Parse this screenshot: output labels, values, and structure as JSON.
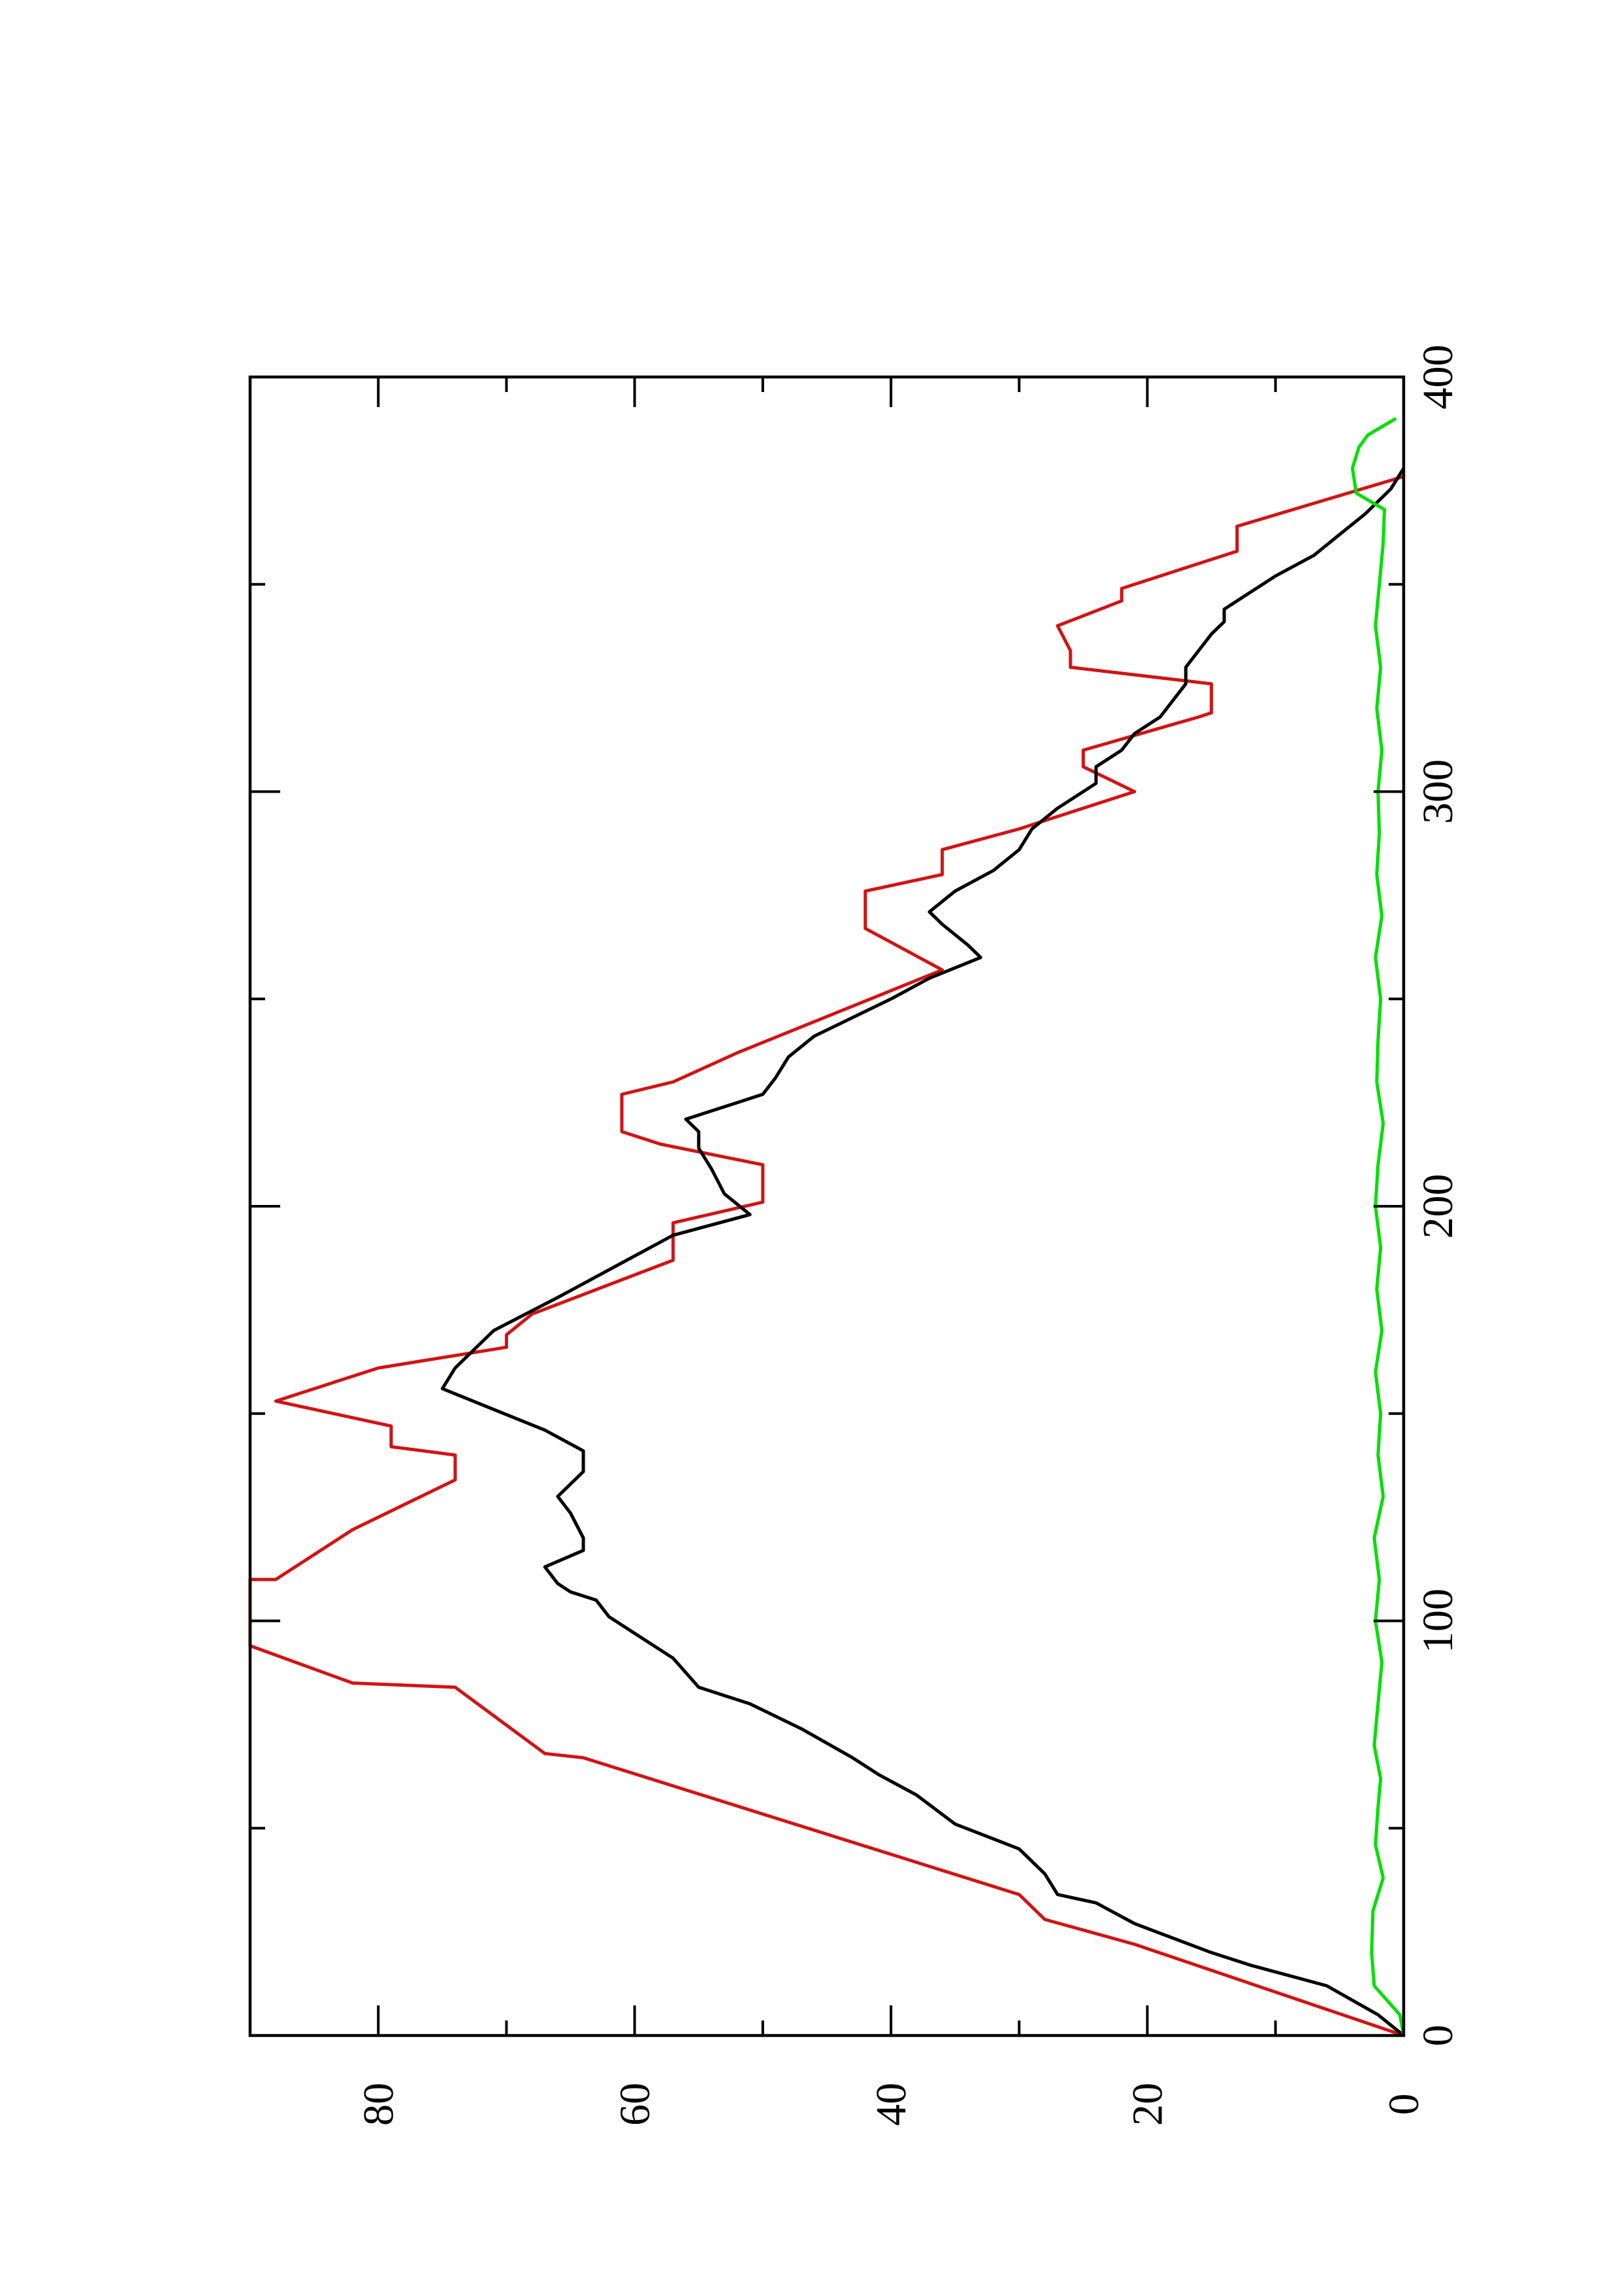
{
  "chart_data": {
    "type": "line",
    "orientation": "rotated-90-counterclockwise",
    "title": "",
    "xlabel": "",
    "ylabel": "",
    "xlim": [
      0,
      400
    ],
    "ylim": [
      0,
      90
    ],
    "x_ticks": [
      0,
      100,
      200,
      300,
      400
    ],
    "x_tick_labels": [
      "0",
      "100",
      "200",
      "300",
      "400"
    ],
    "x_minor_ticks": [
      50,
      150,
      250,
      350
    ],
    "y_ticks": [
      0,
      20,
      40,
      60,
      80
    ],
    "y_tick_labels": [
      "0",
      "20",
      "40",
      "60",
      "80"
    ],
    "y_minor_ticks": [
      10,
      30,
      50,
      70
    ],
    "grid": false,
    "legend": "none",
    "series": [
      {
        "color": "#d11414",
        "points": [
          [
            0,
            0
          ],
          [
            22,
            21
          ],
          [
            28,
            28
          ],
          [
            34,
            30
          ],
          [
            67,
            64
          ],
          [
            68,
            67
          ],
          [
            84,
            74
          ],
          [
            85,
            82
          ],
          [
            94,
            90
          ],
          [
            110,
            90
          ],
          [
            110,
            88
          ],
          [
            118,
            84
          ],
          [
            122,
            82
          ],
          [
            134,
            74
          ],
          [
            140,
            74
          ],
          [
            142,
            79
          ],
          [
            147,
            79
          ],
          [
            153,
            88
          ],
          [
            161,
            80
          ],
          [
            166,
            70
          ],
          [
            169,
            70
          ],
          [
            174,
            68
          ],
          [
            187,
            57
          ],
          [
            196,
            57
          ],
          [
            201,
            50
          ],
          [
            210,
            50
          ],
          [
            215,
            58
          ],
          [
            218,
            61
          ],
          [
            227,
            61
          ],
          [
            230,
            57
          ],
          [
            237,
            52
          ],
          [
            257,
            36
          ],
          [
            267,
            42
          ],
          [
            276,
            42
          ],
          [
            280,
            36
          ],
          [
            286,
            36
          ],
          [
            291,
            30
          ],
          [
            300,
            21
          ],
          [
            306,
            25
          ],
          [
            310,
            25
          ],
          [
            318,
            16
          ],
          [
            319,
            15
          ],
          [
            326,
            15
          ],
          [
            330,
            26
          ],
          [
            334,
            26
          ],
          [
            340,
            27
          ],
          [
            346,
            22
          ],
          [
            349,
            22
          ],
          [
            358,
            13
          ],
          [
            364,
            13
          ],
          [
            376,
            0
          ]
        ]
      },
      {
        "color": "#000000",
        "points": [
          [
            0,
            0
          ],
          [
            5,
            2
          ],
          [
            12,
            6
          ],
          [
            17,
            12
          ],
          [
            20,
            15
          ],
          [
            27,
            21
          ],
          [
            32,
            24
          ],
          [
            34,
            27
          ],
          [
            39,
            28
          ],
          [
            45,
            30
          ],
          [
            51,
            35
          ],
          [
            58,
            38
          ],
          [
            63,
            41
          ],
          [
            67,
            43
          ],
          [
            74,
            47
          ],
          [
            80,
            51
          ],
          [
            84,
            55
          ],
          [
            91,
            57
          ],
          [
            97,
            60
          ],
          [
            101,
            62
          ],
          [
            105,
            63
          ],
          [
            107,
            65
          ],
          [
            109,
            66
          ],
          [
            113,
            67
          ],
          [
            117,
            64
          ],
          [
            120,
            64
          ],
          [
            126,
            65
          ],
          [
            130,
            66
          ],
          [
            136,
            64
          ],
          [
            141,
            64
          ],
          [
            146,
            67
          ],
          [
            151,
            71
          ],
          [
            156,
            75
          ],
          [
            161,
            74
          ],
          [
            170,
            71
          ],
          [
            178,
            66
          ],
          [
            183,
            63
          ],
          [
            188,
            60
          ],
          [
            193,
            57
          ],
          [
            198,
            51
          ],
          [
            203,
            53
          ],
          [
            209,
            54
          ],
          [
            214,
            55
          ],
          [
            218,
            55
          ],
          [
            221,
            56
          ],
          [
            224,
            53
          ],
          [
            227,
            50
          ],
          [
            231,
            49
          ],
          [
            236,
            48
          ],
          [
            241,
            46
          ],
          [
            247,
            42
          ],
          [
            250,
            40
          ],
          [
            255,
            37
          ],
          [
            260,
            33
          ],
          [
            263,
            34
          ],
          [
            268,
            36
          ],
          [
            271,
            37
          ],
          [
            276,
            35
          ],
          [
            281,
            32
          ],
          [
            286,
            30
          ],
          [
            291,
            29
          ],
          [
            296,
            27
          ],
          [
            298,
            26
          ],
          [
            302,
            24
          ],
          [
            306,
            24
          ],
          [
            310,
            22
          ],
          [
            314,
            21
          ],
          [
            318,
            19
          ],
          [
            322,
            18
          ],
          [
            326,
            17
          ],
          [
            330,
            17
          ],
          [
            334,
            16
          ],
          [
            338,
            15
          ],
          [
            341,
            14
          ],
          [
            344,
            14
          ],
          [
            348,
            12
          ],
          [
            352,
            10
          ],
          [
            357,
            7
          ],
          [
            362,
            5
          ],
          [
            367,
            3
          ],
          [
            373,
            1
          ],
          [
            378,
            0
          ]
        ]
      },
      {
        "color": "#00e000",
        "points": [
          [
            0,
            0
          ],
          [
            5,
            0.3
          ],
          [
            12,
            2.3
          ],
          [
            20,
            2.5
          ],
          [
            30,
            2.4
          ],
          [
            38,
            1.6
          ],
          [
            46,
            2.2
          ],
          [
            55,
            2.0
          ],
          [
            62,
            1.8
          ],
          [
            70,
            2.3
          ],
          [
            80,
            2.0
          ],
          [
            90,
            1.7
          ],
          [
            100,
            2.2
          ],
          [
            110,
            1.9
          ],
          [
            120,
            2.3
          ],
          [
            130,
            1.6
          ],
          [
            140,
            2.0
          ],
          [
            150,
            1.8
          ],
          [
            160,
            2.2
          ],
          [
            170,
            1.7
          ],
          [
            180,
            2.1
          ],
          [
            190,
            1.8
          ],
          [
            200,
            2.2
          ],
          [
            210,
            2.0
          ],
          [
            220,
            1.6
          ],
          [
            230,
            2.1
          ],
          [
            240,
            2.0
          ],
          [
            250,
            1.8
          ],
          [
            260,
            2.2
          ],
          [
            270,
            1.7
          ],
          [
            280,
            2.1
          ],
          [
            290,
            1.9
          ],
          [
            300,
            2.0
          ],
          [
            310,
            1.7
          ],
          [
            320,
            2.1
          ],
          [
            330,
            1.8
          ],
          [
            340,
            2.2
          ],
          [
            350,
            1.9
          ],
          [
            360,
            1.6
          ],
          [
            368,
            1.5
          ],
          [
            372,
            3.7
          ],
          [
            378,
            4.0
          ],
          [
            383,
            3.5
          ],
          [
            386,
            2.8
          ],
          [
            390,
            0.6
          ]
        ]
      }
    ]
  }
}
